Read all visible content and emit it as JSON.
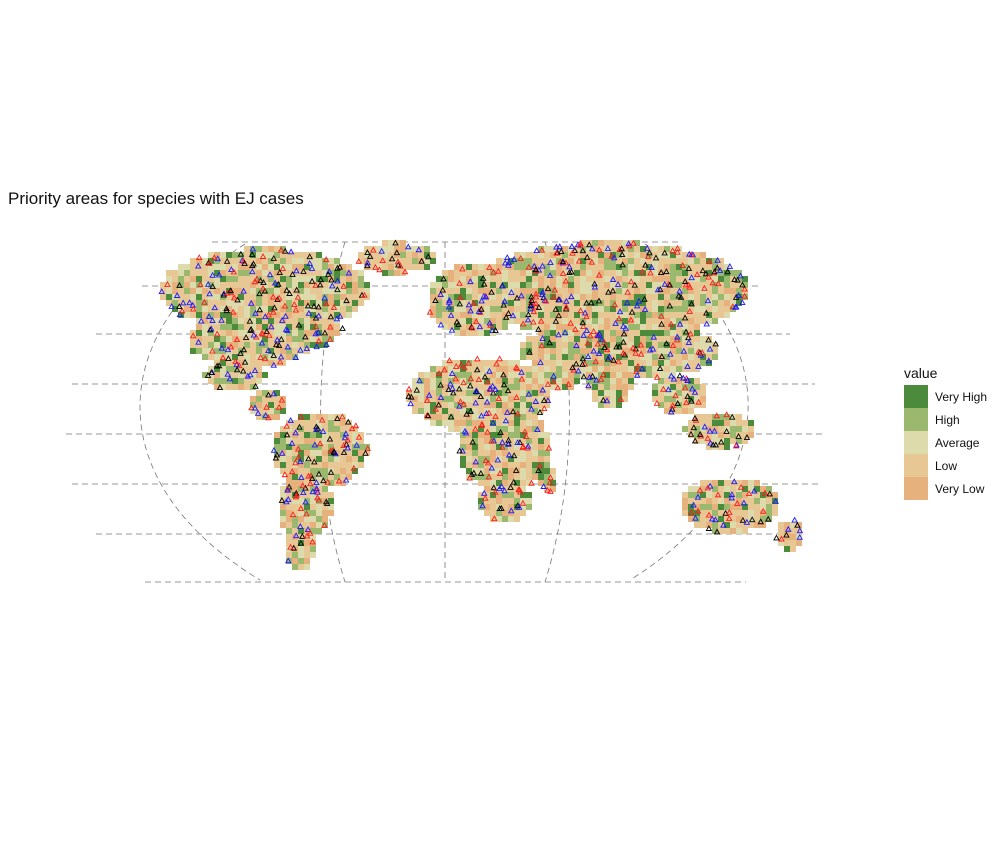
{
  "title": "Priority areas for species with EJ cases",
  "legend": {
    "title": "value",
    "items": [
      {
        "label": "Very High",
        "color": "#4b8b3b"
      },
      {
        "label": "High",
        "color": "#9bb86f"
      },
      {
        "label": "Average",
        "color": "#dddbab"
      },
      {
        "label": "Low",
        "color": "#e7c894"
      },
      {
        "label": "Very Low",
        "color": "#e6b17c"
      }
    ]
  },
  "case_marker_colors": [
    "#1a1aff",
    "#ff1a1a",
    "#000000"
  ]
}
